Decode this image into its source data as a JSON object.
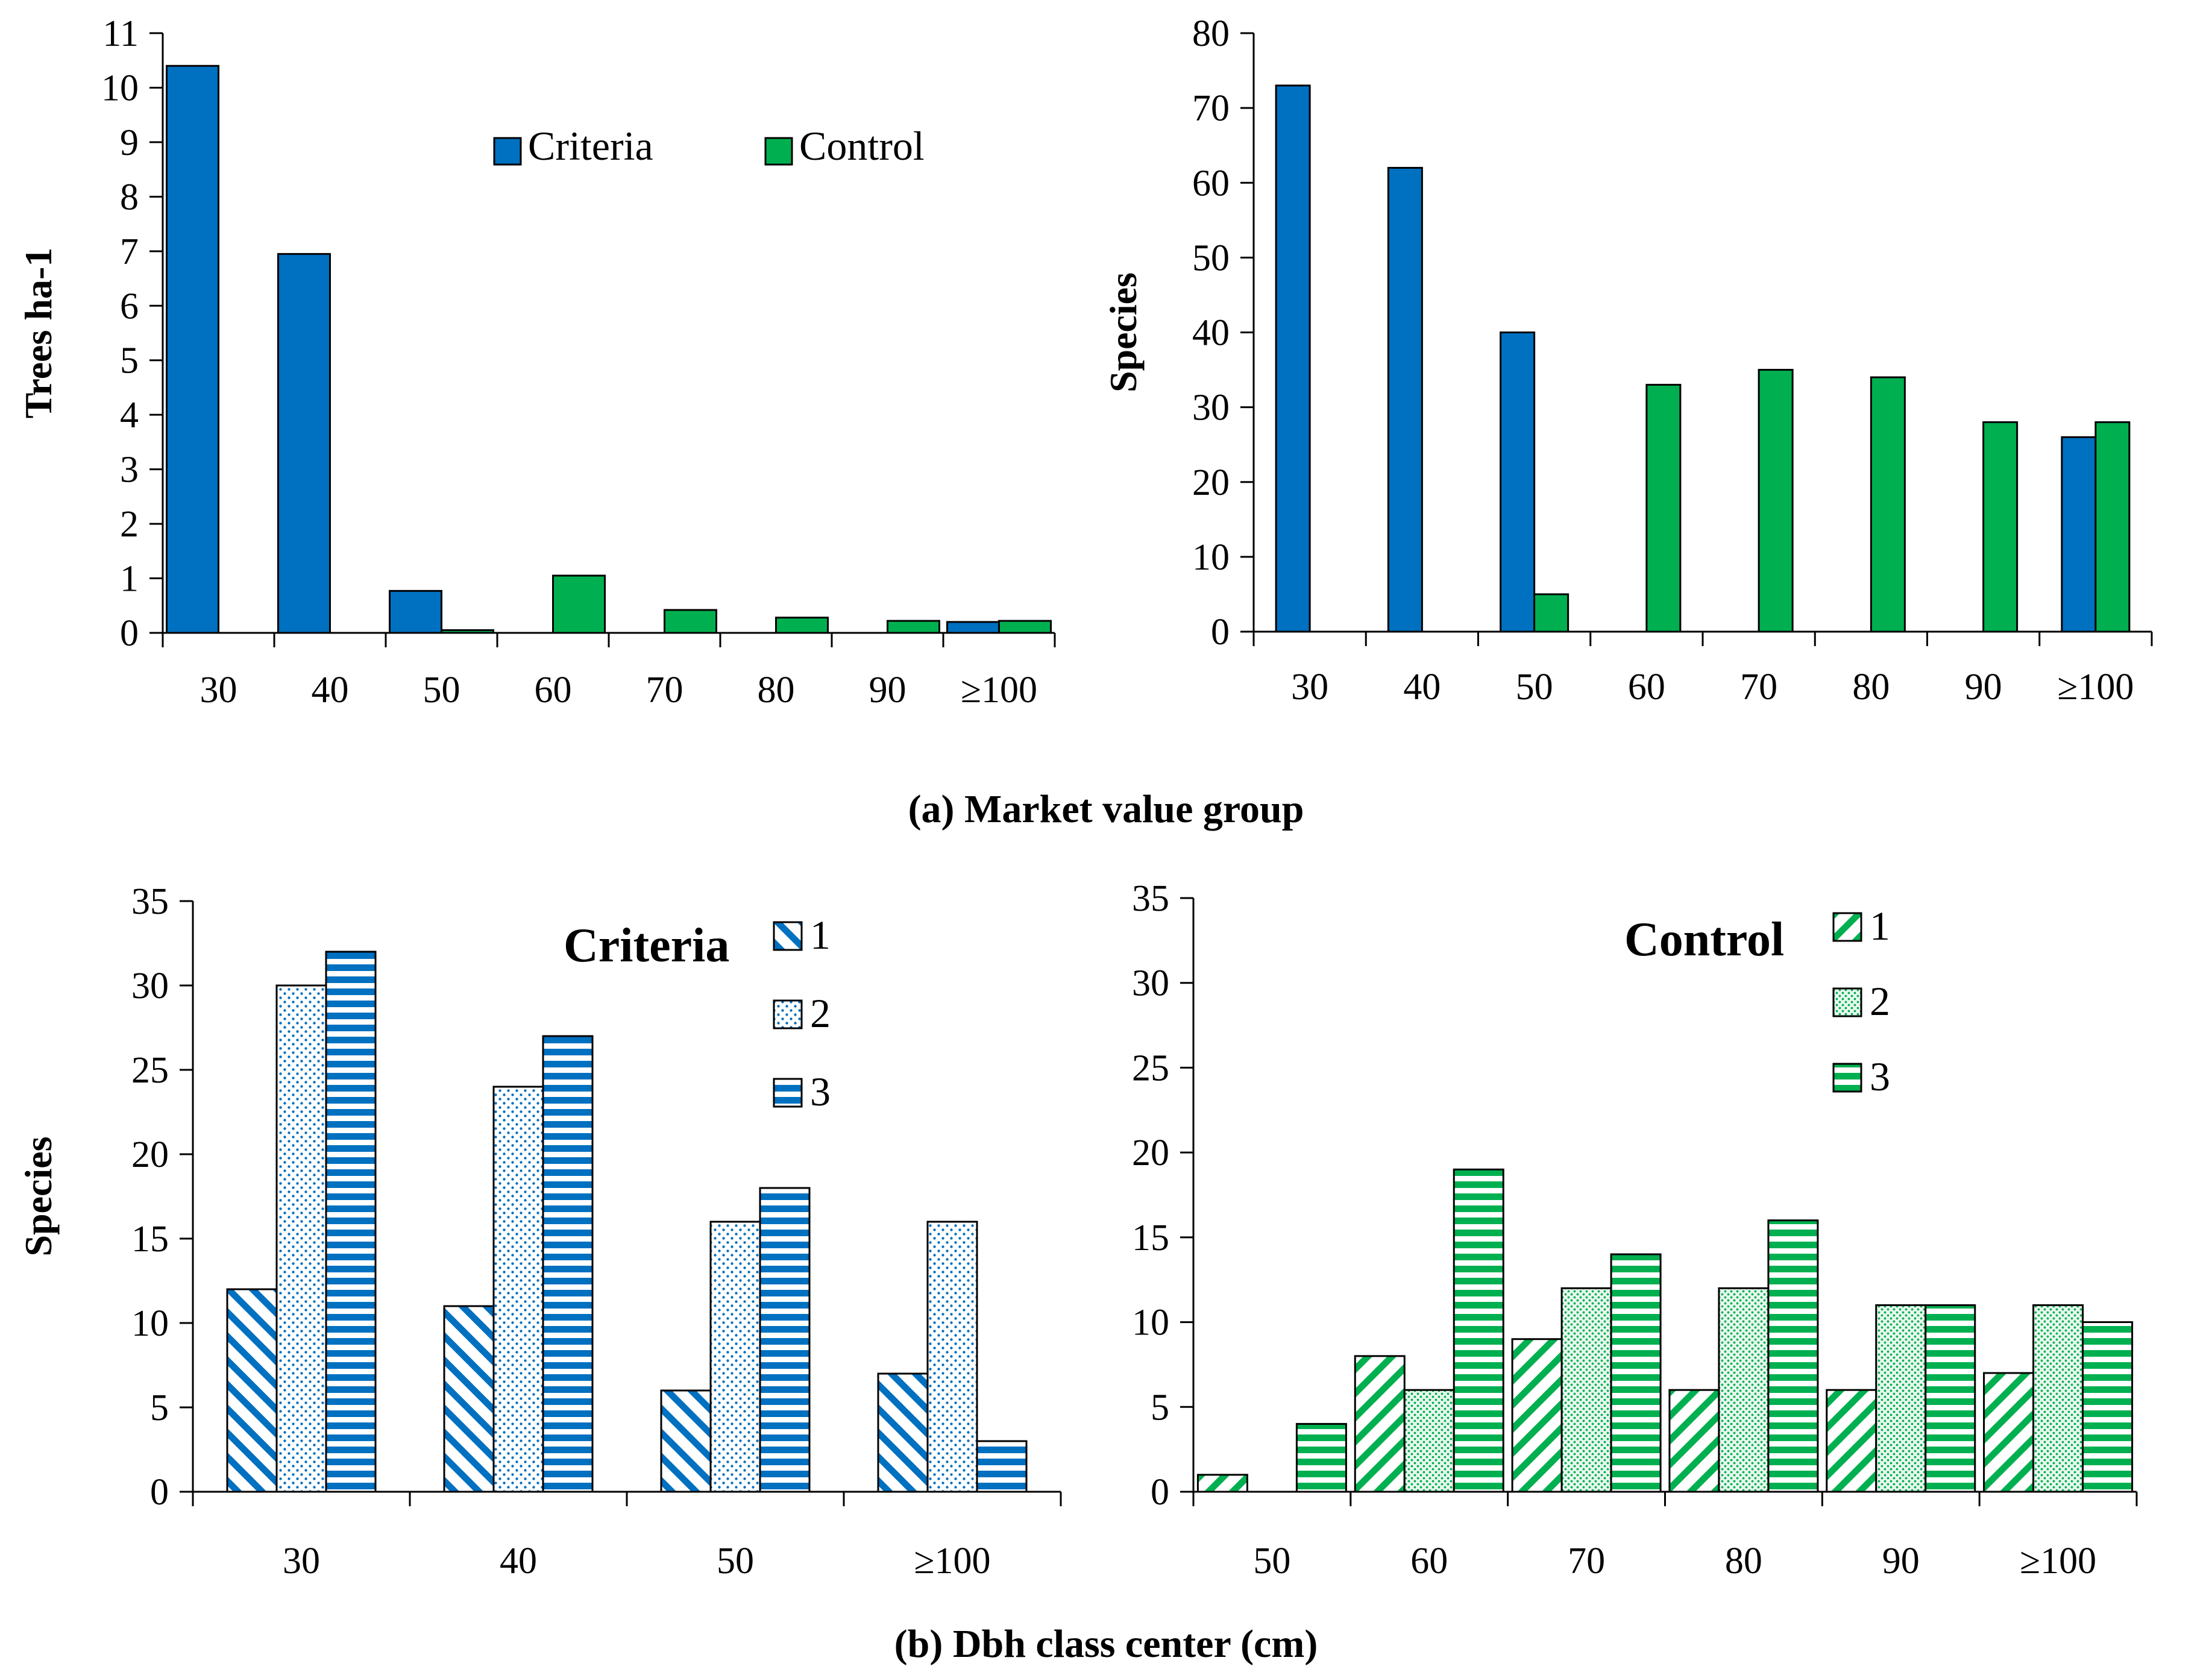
{
  "colors": {
    "blue": "#0070C0",
    "green": "#00B050",
    "axis": "#000000"
  },
  "captions": {
    "a": "(a) Market value group",
    "b": "(b) Dbh class center (cm)"
  },
  "chart_data": [
    {
      "id": "a-left",
      "type": "bar",
      "categories": [
        "30",
        "40",
        "50",
        "60",
        "70",
        "80",
        "90",
        "≥100"
      ],
      "series": [
        {
          "name": "Criteria",
          "values": [
            10.4,
            6.95,
            0.77,
            0,
            0,
            0,
            0,
            0.2
          ],
          "pattern": "solid-blue"
        },
        {
          "name": "Control",
          "values": [
            0,
            0,
            0.05,
            1.05,
            0.42,
            0.28,
            0.22,
            0.22
          ],
          "pattern": "solid-green"
        }
      ],
      "ylabel": "Trees ha-1",
      "ylim": [
        0,
        11
      ],
      "yticks": [
        "0",
        "1",
        "2",
        "3",
        "4",
        "5",
        "6",
        "7",
        "8",
        "9",
        "10",
        "11"
      ],
      "legend": [
        "Criteria",
        "Control"
      ]
    },
    {
      "id": "a-right",
      "type": "bar",
      "categories": [
        "30",
        "40",
        "50",
        "60",
        "70",
        "80",
        "90",
        "≥100"
      ],
      "series": [
        {
          "name": "Criteria",
          "values": [
            73,
            62,
            40,
            0,
            0,
            0,
            0,
            26
          ],
          "pattern": "solid-blue"
        },
        {
          "name": "Control",
          "values": [
            0,
            0,
            5,
            33,
            35,
            34,
            28,
            28
          ],
          "pattern": "solid-green"
        }
      ],
      "ylabel": "Species",
      "ylim": [
        0,
        80
      ],
      "yticks": [
        "0",
        "10",
        "20",
        "30",
        "40",
        "50",
        "60",
        "70",
        "80"
      ]
    },
    {
      "id": "b-left",
      "type": "bar",
      "categories": [
        "30",
        "40",
        "50",
        "≥100"
      ],
      "series": [
        {
          "name": "1",
          "values": [
            12,
            11,
            6,
            7
          ],
          "pattern": "blue-diag"
        },
        {
          "name": "2",
          "values": [
            30,
            24,
            16,
            16
          ],
          "pattern": "blue-dots"
        },
        {
          "name": "3",
          "values": [
            32,
            27,
            18,
            3
          ],
          "pattern": "blue-horiz"
        }
      ],
      "ylabel": "Species",
      "ylim": [
        0,
        35
      ],
      "yticks": [
        "0",
        "5",
        "10",
        "15",
        "20",
        "25",
        "30",
        "35"
      ],
      "legend_title": "Criteria",
      "legend": [
        "1",
        "2",
        "3"
      ]
    },
    {
      "id": "b-right",
      "type": "bar",
      "categories": [
        "50",
        "60",
        "70",
        "80",
        "90",
        "≥100"
      ],
      "series": [
        {
          "name": "1",
          "values": [
            1,
            8,
            9,
            6,
            6,
            7
          ],
          "pattern": "green-diag"
        },
        {
          "name": "2",
          "values": [
            0,
            6,
            12,
            12,
            11,
            11
          ],
          "pattern": "green-dots"
        },
        {
          "name": "3",
          "values": [
            4,
            19,
            14,
            16,
            11,
            10
          ],
          "pattern": "green-horiz"
        }
      ],
      "ylabel": "",
      "ylim": [
        0,
        35
      ],
      "yticks": [
        "0",
        "5",
        "10",
        "15",
        "20",
        "25",
        "30",
        "35"
      ],
      "legend_title": "Control",
      "legend": [
        "1",
        "2",
        "3"
      ]
    }
  ]
}
